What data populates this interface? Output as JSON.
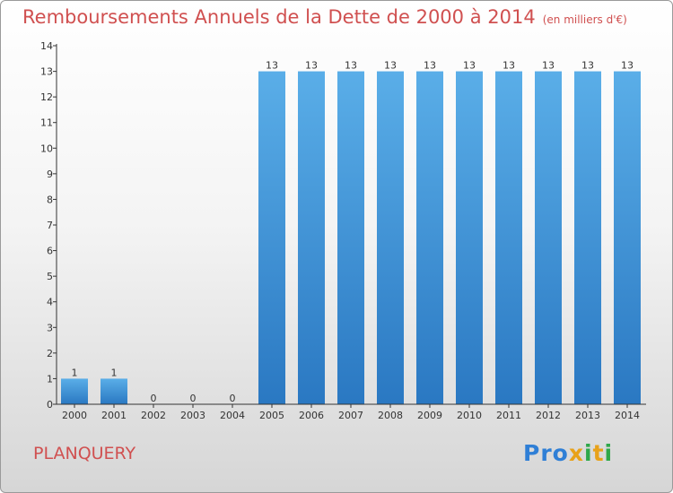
{
  "header": {
    "title": "Remboursements Annuels de la Dette de 2000 à 2014",
    "unit": "(en milliers d'€)"
  },
  "footer": {
    "commune": "PLANQUERY",
    "brand": {
      "name": "Proxiti",
      "letters": [
        {
          "char": "P",
          "color": "#2f7fd6"
        },
        {
          "char": "r",
          "color": "#2f7fd6"
        },
        {
          "char": "o",
          "color": "#2f7fd6"
        },
        {
          "char": "x",
          "color": "#e8a21a"
        },
        {
          "char": "i",
          "color": "#2fa84a"
        },
        {
          "char": "t",
          "color": "#e8a21a"
        },
        {
          "char": "i",
          "color": "#2fa84a"
        }
      ]
    }
  },
  "colors": {
    "bar_top": "#5aaee8",
    "bar_bottom": "#2a78c2",
    "title": "#d05050"
  },
  "chart_data": {
    "type": "bar",
    "title": "Remboursements Annuels de la Dette de 2000 à 2014",
    "subtitle": "(en milliers d'€)",
    "xlabel": "",
    "ylabel": "",
    "categories": [
      "2000",
      "2001",
      "2002",
      "2003",
      "2004",
      "2005",
      "2006",
      "2007",
      "2008",
      "2009",
      "2010",
      "2011",
      "2012",
      "2013",
      "2014"
    ],
    "values": [
      1,
      1,
      0,
      0,
      0,
      13,
      13,
      13,
      13,
      13,
      13,
      13,
      13,
      13,
      13
    ],
    "data_labels": [
      "1",
      "1",
      "0",
      "0",
      "0",
      "13",
      "13",
      "13",
      "13",
      "13",
      "13",
      "13",
      "13",
      "13",
      "13"
    ],
    "ylim": [
      0,
      14
    ],
    "yticks": [
      0,
      1,
      2,
      3,
      4,
      5,
      6,
      7,
      8,
      9,
      10,
      11,
      12,
      13,
      14
    ],
    "grid": false,
    "legend": "none"
  }
}
